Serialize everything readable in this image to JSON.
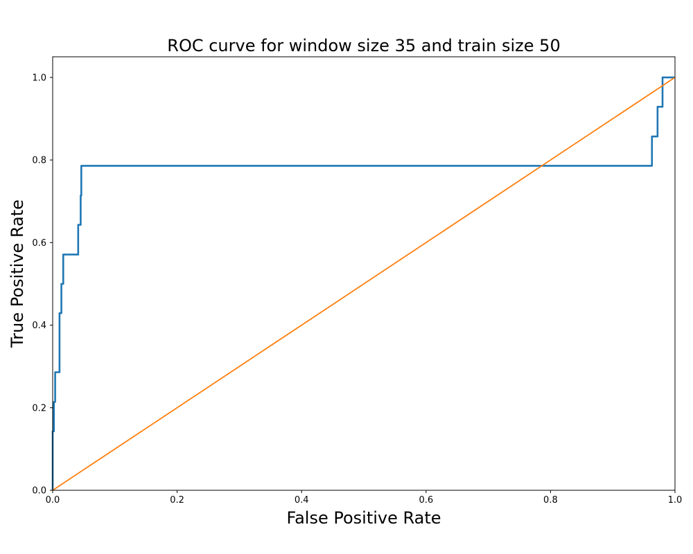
{
  "chart_data": {
    "type": "line",
    "title": "ROC curve  for window size 35 and train size 50",
    "xlabel": "False Positive Rate",
    "ylabel": "True Positive Rate",
    "xlim": [
      0.0,
      1.0
    ],
    "ylim": [
      0.0,
      1.05
    ],
    "xticks": [
      0.0,
      0.2,
      0.4,
      0.6,
      0.8,
      1.0
    ],
    "xtick_labels": [
      "0.0",
      "0.2",
      "0.4",
      "0.6",
      "0.8",
      "1.0"
    ],
    "yticks": [
      0.0,
      0.2,
      0.4,
      0.6,
      0.8,
      1.0
    ],
    "ytick_labels": [
      "0.0",
      "0.2",
      "0.4",
      "0.6",
      "0.8",
      "1.0"
    ],
    "grid": false,
    "legend": "none",
    "series": [
      {
        "color": "#1f77b4",
        "x": [
          0.0,
          0.0,
          0.002,
          0.002,
          0.004,
          0.004,
          0.011,
          0.011,
          0.014,
          0.014,
          0.017,
          0.017,
          0.041,
          0.041,
          0.045,
          0.045,
          0.046,
          0.046,
          0.963,
          0.963,
          0.972,
          0.972,
          0.98,
          0.98,
          1.0
        ],
        "y": [
          0.0,
          0.143,
          0.143,
          0.214,
          0.214,
          0.286,
          0.286,
          0.429,
          0.429,
          0.5,
          0.5,
          0.571,
          0.571,
          0.643,
          0.643,
          0.714,
          0.714,
          0.786,
          0.786,
          0.857,
          0.857,
          0.929,
          0.929,
          1.0,
          1.0
        ]
      },
      {
        "color": "#ff7f0e",
        "x": [
          0.0,
          1.0
        ],
        "y": [
          0.0,
          1.0
        ]
      }
    ]
  }
}
